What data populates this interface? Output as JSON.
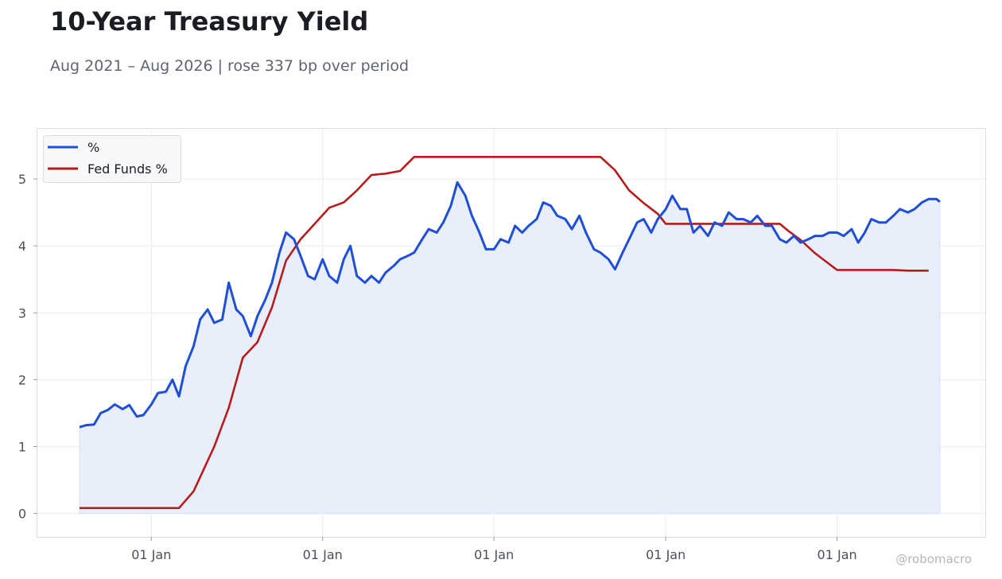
{
  "header": {
    "title": "10-Year Treasury Yield",
    "subtitle": "Aug 2021 – Aug 2026 | rose 337 bp over period"
  },
  "watermark": "@robomacro",
  "colors": {
    "yield_line": "#1f4fd6",
    "yield_fill": "#e9eefb",
    "fed_funds_line": "#b71c1c",
    "grid": "#ececf1",
    "frame": "#dcdde3"
  },
  "chart_data": {
    "type": "line",
    "title": "10-Year Treasury Yield",
    "subtitle": "Aug 2021 – Aug 2026 | rose 337 bp over period",
    "xlabel": "",
    "ylabel": "",
    "x_range": [
      "2021-08-01",
      "2026-08-15"
    ],
    "ylim": [
      -0.35,
      5.75
    ],
    "y_ticks": [
      0,
      1,
      2,
      3,
      4,
      5
    ],
    "x_ticks": [
      {
        "date": "2022-01-01",
        "label": "01 Jan"
      },
      {
        "date": "2023-01-01",
        "label": "01 Jan"
      },
      {
        "date": "2024-01-01",
        "label": "01 Jan"
      },
      {
        "date": "2025-01-01",
        "label": "01 Jan"
      },
      {
        "date": "2026-01-01",
        "label": "01 Jan"
      }
    ],
    "grid": true,
    "legend_position": "top-left",
    "series": [
      {
        "name": "%",
        "style": "line-with-area-fill",
        "points": [
          [
            "2021-08-01",
            1.29
          ],
          [
            "2021-08-15",
            1.32
          ],
          [
            "2021-09-01",
            1.33
          ],
          [
            "2021-09-15",
            1.5
          ],
          [
            "2021-10-01",
            1.55
          ],
          [
            "2021-10-15",
            1.63
          ],
          [
            "2021-11-01",
            1.56
          ],
          [
            "2021-11-15",
            1.62
          ],
          [
            "2021-12-01",
            1.45
          ],
          [
            "2021-12-15",
            1.47
          ],
          [
            "2022-01-01",
            1.63
          ],
          [
            "2022-01-15",
            1.8
          ],
          [
            "2022-02-01",
            1.82
          ],
          [
            "2022-02-15",
            2.0
          ],
          [
            "2022-03-01",
            1.75
          ],
          [
            "2022-03-15",
            2.2
          ],
          [
            "2022-04-01",
            2.5
          ],
          [
            "2022-04-15",
            2.9
          ],
          [
            "2022-05-01",
            3.05
          ],
          [
            "2022-05-15",
            2.85
          ],
          [
            "2022-06-01",
            2.9
          ],
          [
            "2022-06-15",
            3.45
          ],
          [
            "2022-07-01",
            3.05
          ],
          [
            "2022-07-15",
            2.95
          ],
          [
            "2022-08-01",
            2.65
          ],
          [
            "2022-08-15",
            2.95
          ],
          [
            "2022-09-01",
            3.2
          ],
          [
            "2022-09-15",
            3.45
          ],
          [
            "2022-10-01",
            3.9
          ],
          [
            "2022-10-15",
            4.2
          ],
          [
            "2022-11-01",
            4.1
          ],
          [
            "2022-11-15",
            3.85
          ],
          [
            "2022-12-01",
            3.55
          ],
          [
            "2022-12-15",
            3.5
          ],
          [
            "2023-01-01",
            3.8
          ],
          [
            "2023-01-15",
            3.55
          ],
          [
            "2023-02-01",
            3.45
          ],
          [
            "2023-02-15",
            3.8
          ],
          [
            "2023-03-01",
            4.0
          ],
          [
            "2023-03-15",
            3.55
          ],
          [
            "2023-04-01",
            3.45
          ],
          [
            "2023-04-15",
            3.55
          ],
          [
            "2023-05-01",
            3.45
          ],
          [
            "2023-05-15",
            3.6
          ],
          [
            "2023-06-01",
            3.7
          ],
          [
            "2023-06-15",
            3.8
          ],
          [
            "2023-07-01",
            3.85
          ],
          [
            "2023-07-15",
            3.9
          ],
          [
            "2023-08-01",
            4.1
          ],
          [
            "2023-08-15",
            4.25
          ],
          [
            "2023-09-01",
            4.2
          ],
          [
            "2023-09-15",
            4.35
          ],
          [
            "2023-10-01",
            4.6
          ],
          [
            "2023-10-15",
            4.95
          ],
          [
            "2023-11-01",
            4.75
          ],
          [
            "2023-11-15",
            4.45
          ],
          [
            "2023-12-01",
            4.2
          ],
          [
            "2023-12-15",
            3.95
          ],
          [
            "2024-01-01",
            3.95
          ],
          [
            "2024-01-15",
            4.1
          ],
          [
            "2024-02-01",
            4.05
          ],
          [
            "2024-02-15",
            4.3
          ],
          [
            "2024-03-01",
            4.2
          ],
          [
            "2024-03-15",
            4.3
          ],
          [
            "2024-04-01",
            4.4
          ],
          [
            "2024-04-15",
            4.65
          ],
          [
            "2024-05-01",
            4.6
          ],
          [
            "2024-05-15",
            4.45
          ],
          [
            "2024-06-01",
            4.4
          ],
          [
            "2024-06-15",
            4.25
          ],
          [
            "2024-07-01",
            4.45
          ],
          [
            "2024-07-15",
            4.2
          ],
          [
            "2024-08-01",
            3.95
          ],
          [
            "2024-08-15",
            3.9
          ],
          [
            "2024-09-01",
            3.8
          ],
          [
            "2024-09-15",
            3.65
          ],
          [
            "2024-10-01",
            3.9
          ],
          [
            "2024-10-15",
            4.1
          ],
          [
            "2024-11-01",
            4.35
          ],
          [
            "2024-11-15",
            4.4
          ],
          [
            "2024-12-01",
            4.2
          ],
          [
            "2024-12-15",
            4.4
          ],
          [
            "2025-01-01",
            4.55
          ],
          [
            "2025-01-15",
            4.75
          ],
          [
            "2025-02-01",
            4.55
          ],
          [
            "2025-02-15",
            4.55
          ],
          [
            "2025-03-01",
            4.2
          ],
          [
            "2025-03-15",
            4.3
          ],
          [
            "2025-04-01",
            4.15
          ],
          [
            "2025-04-15",
            4.35
          ],
          [
            "2025-05-01",
            4.3
          ],
          [
            "2025-05-15",
            4.5
          ],
          [
            "2025-06-01",
            4.4
          ],
          [
            "2025-06-15",
            4.4
          ],
          [
            "2025-07-01",
            4.35
          ],
          [
            "2025-07-15",
            4.45
          ],
          [
            "2025-08-01",
            4.3
          ],
          [
            "2025-08-15",
            4.3
          ],
          [
            "2025-09-01",
            4.1
          ],
          [
            "2025-09-15",
            4.05
          ],
          [
            "2025-10-01",
            4.15
          ],
          [
            "2025-10-15",
            4.05
          ],
          [
            "2025-11-01",
            4.1
          ],
          [
            "2025-11-15",
            4.15
          ],
          [
            "2025-12-01",
            4.15
          ],
          [
            "2025-12-15",
            4.2
          ],
          [
            "2026-01-01",
            4.2
          ],
          [
            "2026-01-15",
            4.15
          ],
          [
            "2026-02-01",
            4.25
          ],
          [
            "2026-02-15",
            4.05
          ],
          [
            "2026-03-01",
            4.2
          ],
          [
            "2026-03-15",
            4.4
          ],
          [
            "2026-04-01",
            4.35
          ],
          [
            "2026-04-15",
            4.35
          ],
          [
            "2026-05-01",
            4.45
          ],
          [
            "2026-05-15",
            4.55
          ],
          [
            "2026-06-01",
            4.5
          ],
          [
            "2026-06-15",
            4.55
          ],
          [
            "2026-07-01",
            4.65
          ],
          [
            "2026-07-15",
            4.7
          ],
          [
            "2026-08-01",
            4.7
          ],
          [
            "2026-08-08",
            4.66
          ]
        ]
      },
      {
        "name": "Fed Funds %",
        "style": "line",
        "points": [
          [
            "2021-08-01",
            0.08
          ],
          [
            "2022-03-01",
            0.08
          ],
          [
            "2022-04-01",
            0.33
          ],
          [
            "2022-05-15",
            1.0
          ],
          [
            "2022-06-15",
            1.58
          ],
          [
            "2022-07-15",
            2.33
          ],
          [
            "2022-08-15",
            2.56
          ],
          [
            "2022-09-15",
            3.08
          ],
          [
            "2022-10-15",
            3.78
          ],
          [
            "2022-11-15",
            4.1
          ],
          [
            "2022-12-15",
            4.33
          ],
          [
            "2023-01-15",
            4.57
          ],
          [
            "2023-02-15",
            4.65
          ],
          [
            "2023-03-15",
            4.83
          ],
          [
            "2023-04-15",
            5.06
          ],
          [
            "2023-05-15",
            5.08
          ],
          [
            "2023-06-15",
            5.12
          ],
          [
            "2023-07-15",
            5.33
          ],
          [
            "2024-08-15",
            5.33
          ],
          [
            "2024-09-15",
            5.13
          ],
          [
            "2024-10-15",
            4.83
          ],
          [
            "2024-11-15",
            4.64
          ],
          [
            "2024-12-15",
            4.48
          ],
          [
            "2025-01-01",
            4.33
          ],
          [
            "2025-09-01",
            4.33
          ],
          [
            "2025-09-20",
            4.22
          ],
          [
            "2025-10-15",
            4.09
          ],
          [
            "2025-11-15",
            3.89
          ],
          [
            "2025-12-15",
            3.73
          ],
          [
            "2026-01-01",
            3.64
          ],
          [
            "2026-05-01",
            3.64
          ],
          [
            "2026-06-01",
            3.63
          ],
          [
            "2026-07-15",
            3.63
          ]
        ]
      }
    ]
  }
}
